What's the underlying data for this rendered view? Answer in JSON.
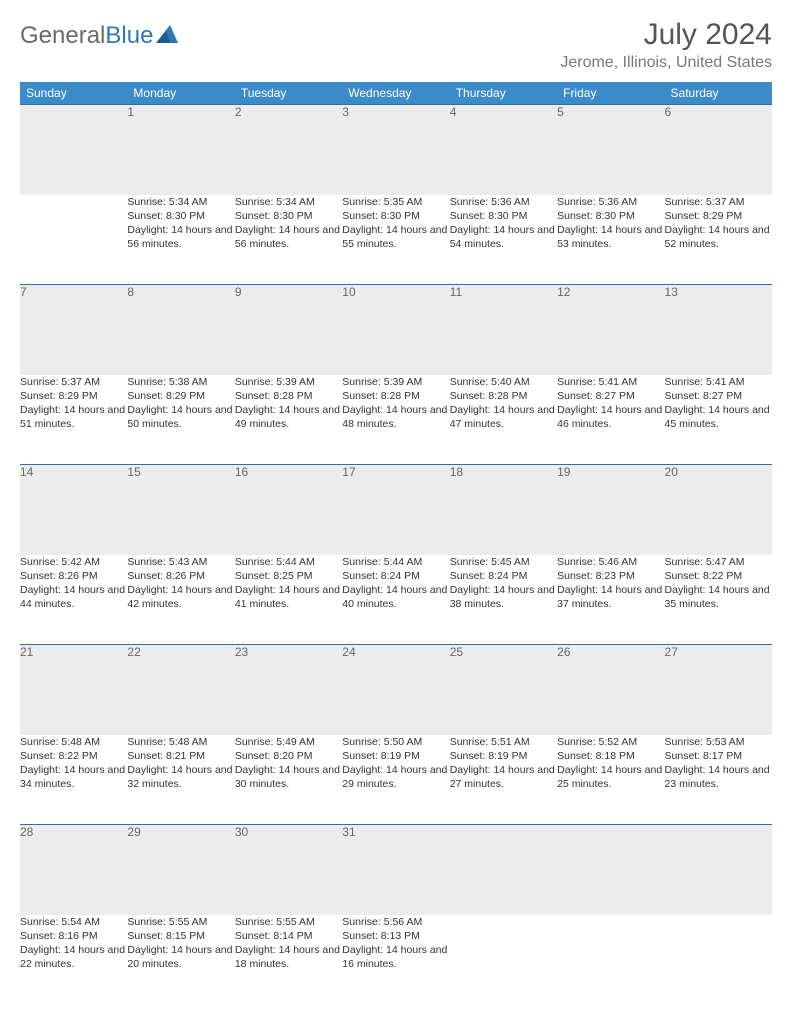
{
  "logo": {
    "text1": "General",
    "text2": "Blue"
  },
  "month_title": "July 2024",
  "location": "Jerome, Illinois, United States",
  "colors": {
    "header_bg": "#3b8bc9",
    "header_text": "#ffffff",
    "daynum_bg": "#ececec",
    "daynum_text": "#666666",
    "row_border": "#2f6fa8",
    "body_text": "#333333",
    "title_text": "#555555",
    "location_text": "#777777",
    "logo_gray": "#6a6a6a",
    "logo_blue": "#2f77bb"
  },
  "weekdays": [
    "Sunday",
    "Monday",
    "Tuesday",
    "Wednesday",
    "Thursday",
    "Friday",
    "Saturday"
  ],
  "weeks": [
    [
      {
        "num": "",
        "sunrise": "",
        "sunset": "",
        "daylight": ""
      },
      {
        "num": "1",
        "sunrise": "Sunrise: 5:34 AM",
        "sunset": "Sunset: 8:30 PM",
        "daylight": "Daylight: 14 hours and 56 minutes."
      },
      {
        "num": "2",
        "sunrise": "Sunrise: 5:34 AM",
        "sunset": "Sunset: 8:30 PM",
        "daylight": "Daylight: 14 hours and 56 minutes."
      },
      {
        "num": "3",
        "sunrise": "Sunrise: 5:35 AM",
        "sunset": "Sunset: 8:30 PM",
        "daylight": "Daylight: 14 hours and 55 minutes."
      },
      {
        "num": "4",
        "sunrise": "Sunrise: 5:36 AM",
        "sunset": "Sunset: 8:30 PM",
        "daylight": "Daylight: 14 hours and 54 minutes."
      },
      {
        "num": "5",
        "sunrise": "Sunrise: 5:36 AM",
        "sunset": "Sunset: 8:30 PM",
        "daylight": "Daylight: 14 hours and 53 minutes."
      },
      {
        "num": "6",
        "sunrise": "Sunrise: 5:37 AM",
        "sunset": "Sunset: 8:29 PM",
        "daylight": "Daylight: 14 hours and 52 minutes."
      }
    ],
    [
      {
        "num": "7",
        "sunrise": "Sunrise: 5:37 AM",
        "sunset": "Sunset: 8:29 PM",
        "daylight": "Daylight: 14 hours and 51 minutes."
      },
      {
        "num": "8",
        "sunrise": "Sunrise: 5:38 AM",
        "sunset": "Sunset: 8:29 PM",
        "daylight": "Daylight: 14 hours and 50 minutes."
      },
      {
        "num": "9",
        "sunrise": "Sunrise: 5:39 AM",
        "sunset": "Sunset: 8:28 PM",
        "daylight": "Daylight: 14 hours and 49 minutes."
      },
      {
        "num": "10",
        "sunrise": "Sunrise: 5:39 AM",
        "sunset": "Sunset: 8:28 PM",
        "daylight": "Daylight: 14 hours and 48 minutes."
      },
      {
        "num": "11",
        "sunrise": "Sunrise: 5:40 AM",
        "sunset": "Sunset: 8:28 PM",
        "daylight": "Daylight: 14 hours and 47 minutes."
      },
      {
        "num": "12",
        "sunrise": "Sunrise: 5:41 AM",
        "sunset": "Sunset: 8:27 PM",
        "daylight": "Daylight: 14 hours and 46 minutes."
      },
      {
        "num": "13",
        "sunrise": "Sunrise: 5:41 AM",
        "sunset": "Sunset: 8:27 PM",
        "daylight": "Daylight: 14 hours and 45 minutes."
      }
    ],
    [
      {
        "num": "14",
        "sunrise": "Sunrise: 5:42 AM",
        "sunset": "Sunset: 8:26 PM",
        "daylight": "Daylight: 14 hours and 44 minutes."
      },
      {
        "num": "15",
        "sunrise": "Sunrise: 5:43 AM",
        "sunset": "Sunset: 8:26 PM",
        "daylight": "Daylight: 14 hours and 42 minutes."
      },
      {
        "num": "16",
        "sunrise": "Sunrise: 5:44 AM",
        "sunset": "Sunset: 8:25 PM",
        "daylight": "Daylight: 14 hours and 41 minutes."
      },
      {
        "num": "17",
        "sunrise": "Sunrise: 5:44 AM",
        "sunset": "Sunset: 8:24 PM",
        "daylight": "Daylight: 14 hours and 40 minutes."
      },
      {
        "num": "18",
        "sunrise": "Sunrise: 5:45 AM",
        "sunset": "Sunset: 8:24 PM",
        "daylight": "Daylight: 14 hours and 38 minutes."
      },
      {
        "num": "19",
        "sunrise": "Sunrise: 5:46 AM",
        "sunset": "Sunset: 8:23 PM",
        "daylight": "Daylight: 14 hours and 37 minutes."
      },
      {
        "num": "20",
        "sunrise": "Sunrise: 5:47 AM",
        "sunset": "Sunset: 8:22 PM",
        "daylight": "Daylight: 14 hours and 35 minutes."
      }
    ],
    [
      {
        "num": "21",
        "sunrise": "Sunrise: 5:48 AM",
        "sunset": "Sunset: 8:22 PM",
        "daylight": "Daylight: 14 hours and 34 minutes."
      },
      {
        "num": "22",
        "sunrise": "Sunrise: 5:48 AM",
        "sunset": "Sunset: 8:21 PM",
        "daylight": "Daylight: 14 hours and 32 minutes."
      },
      {
        "num": "23",
        "sunrise": "Sunrise: 5:49 AM",
        "sunset": "Sunset: 8:20 PM",
        "daylight": "Daylight: 14 hours and 30 minutes."
      },
      {
        "num": "24",
        "sunrise": "Sunrise: 5:50 AM",
        "sunset": "Sunset: 8:19 PM",
        "daylight": "Daylight: 14 hours and 29 minutes."
      },
      {
        "num": "25",
        "sunrise": "Sunrise: 5:51 AM",
        "sunset": "Sunset: 8:19 PM",
        "daylight": "Daylight: 14 hours and 27 minutes."
      },
      {
        "num": "26",
        "sunrise": "Sunrise: 5:52 AM",
        "sunset": "Sunset: 8:18 PM",
        "daylight": "Daylight: 14 hours and 25 minutes."
      },
      {
        "num": "27",
        "sunrise": "Sunrise: 5:53 AM",
        "sunset": "Sunset: 8:17 PM",
        "daylight": "Daylight: 14 hours and 23 minutes."
      }
    ],
    [
      {
        "num": "28",
        "sunrise": "Sunrise: 5:54 AM",
        "sunset": "Sunset: 8:16 PM",
        "daylight": "Daylight: 14 hours and 22 minutes."
      },
      {
        "num": "29",
        "sunrise": "Sunrise: 5:55 AM",
        "sunset": "Sunset: 8:15 PM",
        "daylight": "Daylight: 14 hours and 20 minutes."
      },
      {
        "num": "30",
        "sunrise": "Sunrise: 5:55 AM",
        "sunset": "Sunset: 8:14 PM",
        "daylight": "Daylight: 14 hours and 18 minutes."
      },
      {
        "num": "31",
        "sunrise": "Sunrise: 5:56 AM",
        "sunset": "Sunset: 8:13 PM",
        "daylight": "Daylight: 14 hours and 16 minutes."
      },
      {
        "num": "",
        "sunrise": "",
        "sunset": "",
        "daylight": ""
      },
      {
        "num": "",
        "sunrise": "",
        "sunset": "",
        "daylight": ""
      },
      {
        "num": "",
        "sunrise": "",
        "sunset": "",
        "daylight": ""
      }
    ]
  ]
}
